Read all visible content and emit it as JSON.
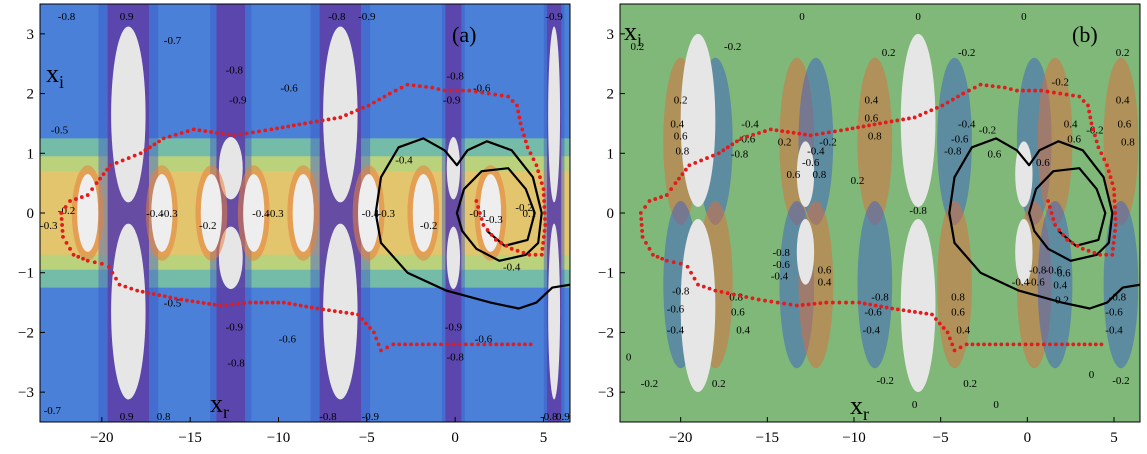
{
  "chart_data": [
    {
      "type": "contour",
      "panel_label": "(a)",
      "xlabel": "x",
      "xlabel_sub": "r",
      "ylabel": "x",
      "ylabel_sub": "i",
      "xlim": [
        -23.5,
        6.5
      ],
      "ylim": [
        -3.5,
        3.5
      ],
      "xticks": [
        -20,
        -15,
        -10,
        -5,
        0,
        5
      ],
      "yticks": [
        -3,
        -2,
        -1,
        0,
        1,
        2,
        3
      ],
      "bands": [
        {
          "x": -18.5,
          "width": 1.2,
          "height": 3.2
        },
        {
          "x": -12.7,
          "width": 0.9,
          "height": 0.8
        },
        {
          "x": -6.5,
          "width": 1.3,
          "height": 3.0
        },
        {
          "x": -0.1,
          "width": 0.5,
          "height": 0.6
        },
        {
          "x": 5.6,
          "width": 0.4,
          "height": 3.0
        }
      ],
      "contour_labels": [
        {
          "x": -22.0,
          "y": 3.3,
          "text": "-0.8"
        },
        {
          "x": -18.6,
          "y": 3.3,
          "text": "0.9"
        },
        {
          "x": -16.0,
          "y": 2.9,
          "text": "-0.7"
        },
        {
          "x": -6.7,
          "y": 3.3,
          "text": "-0.8"
        },
        {
          "x": -5.0,
          "y": 3.3,
          "text": "-0.9"
        },
        {
          "x": 0.0,
          "y": 2.3,
          "text": "-0.8"
        },
        {
          "x": 5.6,
          "y": 3.3,
          "text": "-0.9"
        },
        {
          "x": -12.5,
          "y": 2.4,
          "text": "-0.8"
        },
        {
          "x": -12.3,
          "y": 1.9,
          "text": "-0.9"
        },
        {
          "x": -9.4,
          "y": 2.1,
          "text": "-0.6"
        },
        {
          "x": -0.2,
          "y": 1.9,
          "text": "-0.9"
        },
        {
          "x": 1.5,
          "y": 2.1,
          "text": "-0.6"
        },
        {
          "x": -22.4,
          "y": 1.4,
          "text": "-0.5"
        },
        {
          "x": -2.9,
          "y": 0.9,
          "text": "-0.4"
        },
        {
          "x": -22.0,
          "y": 0.05,
          "text": "-0.2"
        },
        {
          "x": -23.0,
          "y": -0.2,
          "text": "-0.3"
        },
        {
          "x": -17.0,
          "y": 0.0,
          "text": "-0.4"
        },
        {
          "x": -16.2,
          "y": 0.0,
          "text": "-0.3"
        },
        {
          "x": -14.0,
          "y": -0.2,
          "text": "-0.2"
        },
        {
          "x": -11.0,
          "y": 0.0,
          "text": "-0.4"
        },
        {
          "x": -10.2,
          "y": 0.0,
          "text": "-0.3"
        },
        {
          "x": -4.8,
          "y": 0.0,
          "text": "-0.4"
        },
        {
          "x": -3.9,
          "y": 0.0,
          "text": "-0.3"
        },
        {
          "x": -1.5,
          "y": -0.2,
          "text": "-0.2"
        },
        {
          "x": 1.3,
          "y": 0.0,
          "text": "-0.1"
        },
        {
          "x": 2.2,
          "y": -0.1,
          "text": "-0.3"
        },
        {
          "x": 3.9,
          "y": 0.1,
          "text": "-0.2"
        },
        {
          "x": 4.2,
          "y": 0.0,
          "text": "0.1"
        },
        {
          "x": 3.2,
          "y": -0.9,
          "text": "-0.4"
        },
        {
          "x": -16.0,
          "y": -1.5,
          "text": "-0.5"
        },
        {
          "x": -12.5,
          "y": -1.9,
          "text": "-0.9"
        },
        {
          "x": -12.4,
          "y": -2.5,
          "text": "-0.8"
        },
        {
          "x": -9.5,
          "y": -2.1,
          "text": "-0.6"
        },
        {
          "x": -0.1,
          "y": -1.9,
          "text": "-0.9"
        },
        {
          "x": 0.0,
          "y": -2.4,
          "text": "-0.8"
        },
        {
          "x": 1.6,
          "y": -2.1,
          "text": "-0.6"
        },
        {
          "x": -22.8,
          "y": -3.3,
          "text": "-0.7"
        },
        {
          "x": -18.6,
          "y": -3.4,
          "text": "0.9"
        },
        {
          "x": -16.5,
          "y": -3.4,
          "text": "0.8"
        },
        {
          "x": -7.2,
          "y": -3.4,
          "text": "-0.8"
        },
        {
          "x": -4.8,
          "y": -3.4,
          "text": "-0.9"
        },
        {
          "x": 5.3,
          "y": -3.4,
          "text": "-0.8"
        },
        {
          "x": 6.1,
          "y": -3.4,
          "text": "0.9"
        }
      ],
      "black_curve_outer": [
        [
          6.5,
          -1.2
        ],
        [
          5.5,
          -1.25
        ],
        [
          4.6,
          -1.5
        ],
        [
          3.6,
          -1.6
        ],
        [
          2.0,
          -1.5
        ],
        [
          -0.5,
          -1.3
        ],
        [
          -2.7,
          -1.0
        ],
        [
          -4.2,
          -0.5
        ],
        [
          -4.5,
          0.0
        ],
        [
          -4.2,
          0.6
        ],
        [
          -3.2,
          1.1
        ],
        [
          -1.8,
          1.25
        ],
        [
          -0.6,
          1.05
        ],
        [
          0.1,
          0.8
        ],
        [
          0.7,
          1.05
        ],
        [
          1.8,
          1.2
        ],
        [
          3.2,
          1.05
        ],
        [
          4.4,
          0.6
        ],
        [
          4.9,
          0.0
        ],
        [
          4.7,
          -0.5
        ],
        [
          4.0,
          -0.7
        ],
        [
          2.5,
          -0.8
        ],
        [
          1.2,
          -0.6
        ],
        [
          0.4,
          -0.3
        ],
        [
          0.1,
          0.0
        ],
        [
          0.5,
          0.4
        ],
        [
          1.5,
          0.7
        ],
        [
          3.0,
          0.75
        ],
        [
          4.0,
          0.4
        ],
        [
          4.5,
          0.0
        ],
        [
          4.1,
          -0.45
        ],
        [
          2.8,
          -0.55
        ],
        [
          1.8,
          -0.3
        ]
      ],
      "red_points_upper": [
        [
          1.2,
          0.2
        ],
        [
          1.6,
          -0.2
        ],
        [
          2.3,
          -0.45
        ],
        [
          3.2,
          -0.6
        ],
        [
          4.2,
          -0.7
        ],
        [
          4.9,
          -0.7
        ],
        [
          5.1,
          -0.2
        ],
        [
          5.0,
          0.4
        ],
        [
          4.6,
          0.8
        ],
        [
          4.1,
          1.1
        ],
        [
          3.7,
          1.5
        ],
        [
          3.5,
          1.8
        ],
        [
          3.0,
          1.95
        ],
        [
          1.9,
          2.0
        ],
        [
          0.8,
          2.05
        ],
        [
          -0.6,
          2.05
        ],
        [
          -1.3,
          2.1
        ],
        [
          -2.7,
          2.15
        ],
        [
          -3.7,
          2.0
        ],
        [
          -4.9,
          1.8
        ],
        [
          -6.5,
          1.6
        ],
        [
          -8.5,
          1.5
        ],
        [
          -10.4,
          1.4
        ],
        [
          -12.5,
          1.3
        ],
        [
          -14.8,
          1.4
        ],
        [
          -16.5,
          1.25
        ],
        [
          -17.8,
          1.0
        ],
        [
          -19.5,
          0.8
        ],
        [
          -20.3,
          0.5
        ],
        [
          -20.8,
          0.3
        ],
        [
          -21.8,
          0.2
        ],
        [
          -22.3,
          0.0
        ],
        [
          -22.2,
          -0.4
        ],
        [
          -21.6,
          -0.7
        ],
        [
          -20.8,
          -0.8
        ],
        [
          -20.0,
          -0.85
        ],
        [
          -19.6,
          -0.9
        ],
        [
          -19.0,
          -1.2
        ],
        [
          -18.0,
          -1.3
        ],
        [
          -15.5,
          -1.45
        ],
        [
          -13.3,
          -1.55
        ],
        [
          -11.6,
          -1.5
        ],
        [
          -9.7,
          -1.5
        ],
        [
          -7.8,
          -1.6
        ],
        [
          -5.5,
          -1.7
        ],
        [
          -4.6,
          -2.0
        ],
        [
          -4.2,
          -2.3
        ],
        [
          -3.5,
          -2.2
        ],
        [
          -1.5,
          -2.2
        ],
        [
          2.0,
          -2.2
        ],
        [
          4.6,
          -2.2
        ]
      ]
    },
    {
      "type": "contour",
      "panel_label": "(b)",
      "xlabel": "x",
      "xlabel_sub": "r",
      "ylabel": "x",
      "ylabel_sub": "i",
      "xlim": [
        -23.5,
        6.5
      ],
      "ylim": [
        -3.5,
        3.5
      ],
      "xticks": [
        -20,
        -15,
        -10,
        -5,
        0,
        5
      ],
      "yticks": [
        -3,
        -2,
        -1,
        0,
        1,
        2,
        3
      ],
      "contour_labels": [
        {
          "x": -22.5,
          "y": 2.8,
          "text": "0.2"
        },
        {
          "x": -17.0,
          "y": 2.8,
          "text": "-0.2"
        },
        {
          "x": -13.0,
          "y": 3.3,
          "text": "0"
        },
        {
          "x": -6.3,
          "y": 3.3,
          "text": "0"
        },
        {
          "x": -8.0,
          "y": 2.7,
          "text": "0.2"
        },
        {
          "x": -3.5,
          "y": 2.7,
          "text": "-0.2"
        },
        {
          "x": -0.2,
          "y": 3.3,
          "text": "0"
        },
        {
          "x": 5.5,
          "y": 2.7,
          "text": "0.2"
        },
        {
          "x": 1.9,
          "y": 2.2,
          "text": "-0.2"
        },
        {
          "x": -20.0,
          "y": 1.9,
          "text": "0.2"
        },
        {
          "x": -20.2,
          "y": 1.5,
          "text": "0.4"
        },
        {
          "x": -20.0,
          "y": 1.3,
          "text": "0.6"
        },
        {
          "x": -19.9,
          "y": 1.05,
          "text": "0.8"
        },
        {
          "x": -16.0,
          "y": 1.5,
          "text": "-0.4"
        },
        {
          "x": -16.2,
          "y": 1.25,
          "text": "-0.6"
        },
        {
          "x": -16.6,
          "y": 1.0,
          "text": "-0.8"
        },
        {
          "x": -14.0,
          "y": 1.2,
          "text": "0.2"
        },
        {
          "x": -11.5,
          "y": 1.2,
          "text": "-0.2"
        },
        {
          "x": -12.2,
          "y": 1.05,
          "text": "-0.4"
        },
        {
          "x": -12.5,
          "y": 0.85,
          "text": "-0.6"
        },
        {
          "x": -13.5,
          "y": 0.65,
          "text": "0.6"
        },
        {
          "x": -12.0,
          "y": 0.65,
          "text": "0.8"
        },
        {
          "x": -9.8,
          "y": 0.55,
          "text": "0.2"
        },
        {
          "x": -9.0,
          "y": 1.9,
          "text": "0.4"
        },
        {
          "x": -9.0,
          "y": 1.6,
          "text": "0.6"
        },
        {
          "x": -8.8,
          "y": 1.3,
          "text": "0.8"
        },
        {
          "x": -3.5,
          "y": 1.5,
          "text": "-0.4"
        },
        {
          "x": -3.9,
          "y": 1.25,
          "text": "-0.6"
        },
        {
          "x": -4.3,
          "y": 1.05,
          "text": "-0.8"
        },
        {
          "x": -6.3,
          "y": 0.05,
          "text": "-0.8"
        },
        {
          "x": 2.5,
          "y": 1.5,
          "text": "0.4"
        },
        {
          "x": 2.7,
          "y": 1.25,
          "text": "0.6"
        },
        {
          "x": 5.5,
          "y": 1.9,
          "text": "0.4"
        },
        {
          "x": 5.6,
          "y": 1.5,
          "text": "0.6"
        },
        {
          "x": 5.8,
          "y": 1.2,
          "text": "0.8"
        },
        {
          "x": 3.9,
          "y": 1.4,
          "text": "-0.2"
        },
        {
          "x": -2.3,
          "y": 1.4,
          "text": "-0.2"
        },
        {
          "x": -1.9,
          "y": 1.0,
          "text": "0.6"
        },
        {
          "x": 0.9,
          "y": 0.85,
          "text": "0.6"
        },
        {
          "x": -20.0,
          "y": -1.3,
          "text": "-0.8"
        },
        {
          "x": -20.3,
          "y": -1.6,
          "text": "-0.6"
        },
        {
          "x": -20.3,
          "y": -1.95,
          "text": "-0.4"
        },
        {
          "x": -16.8,
          "y": -1.4,
          "text": "0.8"
        },
        {
          "x": -16.7,
          "y": -1.65,
          "text": "0.6"
        },
        {
          "x": -16.4,
          "y": -1.95,
          "text": "0.4"
        },
        {
          "x": -14.2,
          "y": -0.65,
          "text": "-0.8"
        },
        {
          "x": -14.2,
          "y": -0.85,
          "text": "-0.6"
        },
        {
          "x": -14.3,
          "y": -1.05,
          "text": "-0.4"
        },
        {
          "x": -11.7,
          "y": -0.95,
          "text": "0.6"
        },
        {
          "x": -11.7,
          "y": -1.15,
          "text": "0.4"
        },
        {
          "x": -8.5,
          "y": -1.4,
          "text": "-0.8"
        },
        {
          "x": -8.9,
          "y": -1.65,
          "text": "-0.6"
        },
        {
          "x": -9.0,
          "y": -1.95,
          "text": "-0.4"
        },
        {
          "x": -4.0,
          "y": -1.4,
          "text": "0.8"
        },
        {
          "x": -4.0,
          "y": -1.65,
          "text": "0.6"
        },
        {
          "x": -3.7,
          "y": -1.95,
          "text": "0.4"
        },
        {
          "x": 0.6,
          "y": -0.95,
          "text": "-0.8"
        },
        {
          "x": 0.5,
          "y": -1.15,
          "text": "-0.6"
        },
        {
          "x": 1.5,
          "y": -0.95,
          "text": "-0.6"
        },
        {
          "x": -0.4,
          "y": -1.15,
          "text": "-0.4"
        },
        {
          "x": 1.9,
          "y": -1.2,
          "text": "0.4"
        },
        {
          "x": 2.1,
          "y": -1.0,
          "text": "0.6"
        },
        {
          "x": 2.0,
          "y": -1.45,
          "text": "0.2"
        },
        {
          "x": 5.2,
          "y": -1.4,
          "text": "-0.8"
        },
        {
          "x": 5.0,
          "y": -1.65,
          "text": "-0.6"
        },
        {
          "x": 5.0,
          "y": -1.95,
          "text": "-0.4"
        },
        {
          "x": -23.0,
          "y": -2.4,
          "text": "0"
        },
        {
          "x": -21.8,
          "y": -2.85,
          "text": "-0.2"
        },
        {
          "x": -17.8,
          "y": -2.85,
          "text": "0.2"
        },
        {
          "x": -8.2,
          "y": -2.8,
          "text": "-0.2"
        },
        {
          "x": -3.3,
          "y": -2.85,
          "text": "0.2"
        },
        {
          "x": -6.5,
          "y": -3.2,
          "text": "0"
        },
        {
          "x": -1.8,
          "y": -3.2,
          "text": "0"
        },
        {
          "x": 3.7,
          "y": -2.7,
          "text": "0"
        },
        {
          "x": 5.4,
          "y": -2.8,
          "text": "-0.2"
        }
      ]
    }
  ],
  "colors": {
    "red_points": "#e41a1c",
    "curve": "#000000",
    "panel_a_bg": "#4a80d8",
    "panel_b_bg": "#7fb878"
  }
}
